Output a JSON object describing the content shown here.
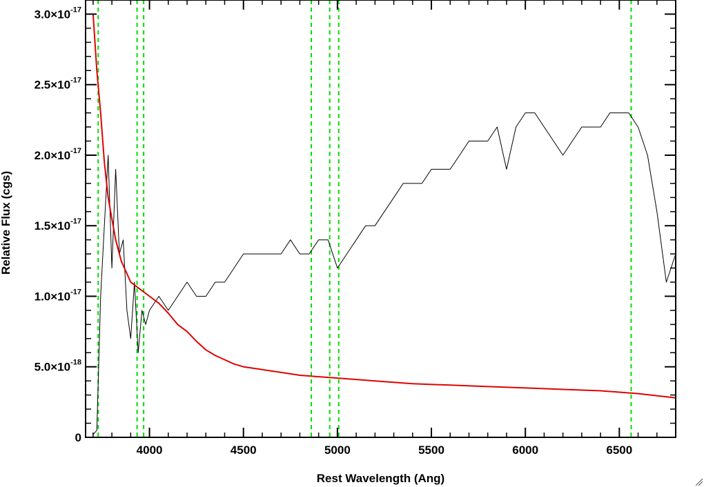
{
  "chart_data": {
    "type": "line",
    "title": "",
    "xlabel": "Rest Wavelength (Ang)",
    "ylabel": "Relative Flux (cgs)",
    "xlim": [
      3660,
      6800
    ],
    "ylim": [
      0,
      3.1e-17
    ],
    "x_ticks": [
      {
        "value": 4000,
        "label": "4000"
      },
      {
        "value": 4500,
        "label": "4500"
      },
      {
        "value": 5000,
        "label": "5000"
      },
      {
        "value": 5500,
        "label": "5500"
      },
      {
        "value": 6000,
        "label": "6000"
      },
      {
        "value": 6500,
        "label": "6500"
      }
    ],
    "y_ticks": [
      {
        "value": 0,
        "mantissa": "0",
        "exponent": ""
      },
      {
        "value": 5e-18,
        "mantissa": "5.0×10",
        "exponent": "-18"
      },
      {
        "value": 1e-17,
        "mantissa": "1.0×10",
        "exponent": "-17"
      },
      {
        "value": 1.5e-17,
        "mantissa": "1.5×10",
        "exponent": "-17"
      },
      {
        "value": 2e-17,
        "mantissa": "2.0×10",
        "exponent": "-17"
      },
      {
        "value": 2.5e-17,
        "mantissa": "2.5×10",
        "exponent": "-17"
      },
      {
        "value": 3e-17,
        "mantissa": "3.0×10",
        "exponent": "-17"
      }
    ],
    "series": [
      {
        "color": "#000000",
        "x": [
          3700,
          3720,
          3740,
          3760,
          3780,
          3800,
          3820,
          3840,
          3860,
          3880,
          3900,
          3920,
          3940,
          3960,
          3980,
          4000,
          4050,
          4100,
          4150,
          4200,
          4250,
          4300,
          4350,
          4400,
          4450,
          4500,
          4550,
          4600,
          4650,
          4700,
          4750,
          4800,
          4850,
          4900,
          4950,
          5000,
          5050,
          5100,
          5150,
          5200,
          5250,
          5300,
          5350,
          5400,
          5450,
          5500,
          5550,
          5600,
          5650,
          5700,
          5750,
          5800,
          5850,
          5900,
          5950,
          6000,
          6050,
          6100,
          6150,
          6200,
          6250,
          6300,
          6350,
          6400,
          6450,
          6500,
          6550,
          6600,
          6650,
          6700,
          6750,
          6800
        ],
        "y": [
          2e-19,
          5e-19,
          1e-17,
          1.5e-17,
          2e-17,
          1.2e-17,
          1.9e-17,
          1.3e-17,
          1.4e-17,
          9e-18,
          7e-18,
          1.1e-17,
          6e-18,
          9e-18,
          8e-18,
          9e-18,
          1e-17,
          9e-18,
          1e-17,
          1.1e-17,
          1e-17,
          1e-17,
          1.1e-17,
          1.1e-17,
          1.2e-17,
          1.3e-17,
          1.3e-17,
          1.3e-17,
          1.3e-17,
          1.3e-17,
          1.4e-17,
          1.3e-17,
          1.3e-17,
          1.4e-17,
          1.4e-17,
          1.2e-17,
          1.3e-17,
          1.4e-17,
          1.5e-17,
          1.5e-17,
          1.6e-17,
          1.7e-17,
          1.8e-17,
          1.8e-17,
          1.8e-17,
          1.9e-17,
          1.9e-17,
          1.9e-17,
          2e-17,
          2.1e-17,
          2.1e-17,
          2.1e-17,
          2.2e-17,
          1.9e-17,
          2.2e-17,
          2.3e-17,
          2.3e-17,
          2.2e-17,
          2.1e-17,
          2e-17,
          2.1e-17,
          2.2e-17,
          2.2e-17,
          2.2e-17,
          2.3e-17,
          2.3e-17,
          2.3e-17,
          2.2e-17,
          2e-17,
          1.6e-17,
          1.1e-17,
          1.3e-17
        ]
      },
      {
        "color": "#e00000",
        "x": [
          3700,
          3710,
          3720,
          3740,
          3760,
          3780,
          3800,
          3820,
          3850,
          3900,
          3950,
          4000,
          4050,
          4100,
          4150,
          4200,
          4250,
          4300,
          4350,
          4400,
          4450,
          4500,
          4600,
          4700,
          4800,
          4900,
          5000,
          5200,
          5400,
          5600,
          5800,
          6000,
          6200,
          6400,
          6600,
          6800
        ],
        "y": [
          3e-17,
          2.8e-17,
          2.6e-17,
          2.3e-17,
          1.95e-17,
          1.7e-17,
          1.55e-17,
          1.4e-17,
          1.25e-17,
          1.1e-17,
          1.05e-17,
          1e-17,
          9.5e-18,
          8.8e-18,
          8e-18,
          7.5e-18,
          6.8e-18,
          6.2e-18,
          5.8e-18,
          5.5e-18,
          5.2e-18,
          5e-18,
          4.8e-18,
          4.6e-18,
          4.4e-18,
          4.3e-18,
          4.2e-18,
          4e-18,
          3.8e-18,
          3.7e-18,
          3.6e-18,
          3.5e-18,
          3.4e-18,
          3.3e-18,
          3.1e-18,
          2.8e-18
        ]
      }
    ],
    "vertical_lines": [
      {
        "x": 3727,
        "color": "#00dd00",
        "style": "dashed"
      },
      {
        "x": 3934,
        "color": "#00dd00",
        "style": "dashed"
      },
      {
        "x": 3969,
        "color": "#00dd00",
        "style": "dashed"
      },
      {
        "x": 4861,
        "color": "#00dd00",
        "style": "dashed"
      },
      {
        "x": 4959,
        "color": "#00dd00",
        "style": "dashed"
      },
      {
        "x": 5007,
        "color": "#00dd00",
        "style": "dashed"
      },
      {
        "x": 6563,
        "color": "#00dd00",
        "style": "dashed"
      }
    ],
    "grid": false,
    "legend": "none"
  }
}
